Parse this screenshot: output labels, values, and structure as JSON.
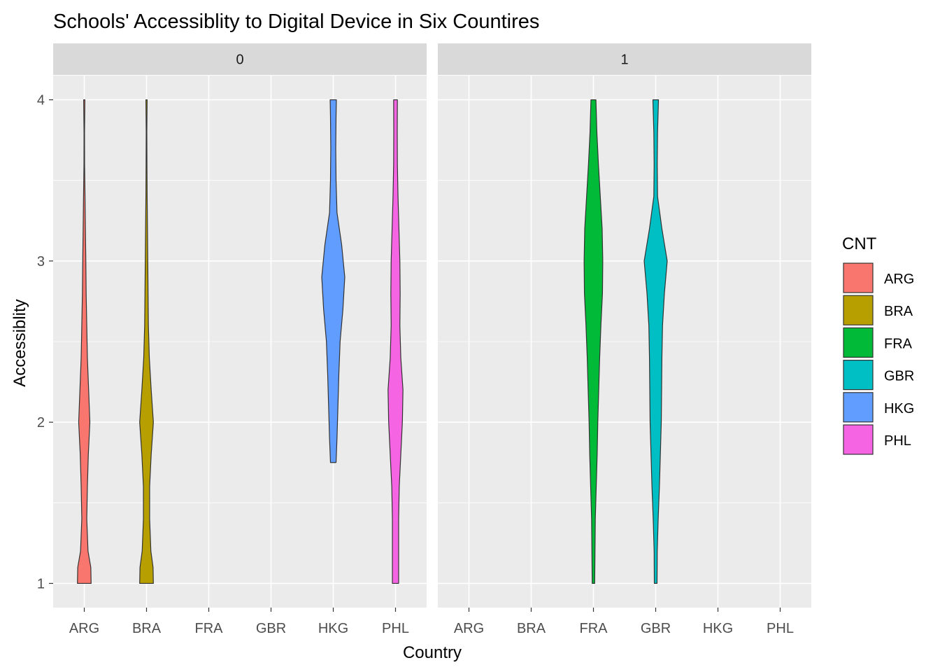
{
  "chart_data": {
    "type": "violin",
    "title": "Schools' Accessiblity to Digital Device in Six Countires",
    "xlabel": "Country",
    "ylabel": "Accessiblity",
    "x_categories": [
      "ARG",
      "BRA",
      "FRA",
      "GBR",
      "HKG",
      "PHL"
    ],
    "ylim": [
      0.85,
      4.15
    ],
    "y_ticks": [
      "1",
      "2",
      "3",
      "4"
    ],
    "y_tick_values": [
      1,
      2,
      3,
      4
    ],
    "grid": true,
    "legend_position": "right",
    "legend": {
      "title": "CNT",
      "entries": [
        {
          "label": "ARG",
          "color": "#F8766D"
        },
        {
          "label": "BRA",
          "color": "#B79F00"
        },
        {
          "label": "FRA",
          "color": "#00BA38"
        },
        {
          "label": "GBR",
          "color": "#00BFC4"
        },
        {
          "label": "HKG",
          "color": "#619CFF"
        },
        {
          "label": "PHL",
          "color": "#F564E3"
        }
      ]
    },
    "facets": [
      {
        "label": "0",
        "violins": [
          {
            "category": "ARG",
            "color": "#F8766D",
            "profile": [
              [
                1.0,
                0.11
              ],
              [
                1.1,
                0.105
              ],
              [
                1.2,
                0.06
              ],
              [
                1.4,
                0.04
              ],
              [
                1.6,
                0.05
              ],
              [
                1.8,
                0.065
              ],
              [
                2.0,
                0.09
              ],
              [
                2.2,
                0.07
              ],
              [
                2.4,
                0.05
              ],
              [
                2.6,
                0.04
              ],
              [
                2.8,
                0.03
              ],
              [
                3.0,
                0.025
              ],
              [
                3.2,
                0.018
              ],
              [
                3.4,
                0.012
              ],
              [
                3.6,
                0.005
              ],
              [
                3.8,
                0.004
              ],
              [
                4.0,
                0.01
              ]
            ]
          },
          {
            "category": "BRA",
            "color": "#B79F00",
            "profile": [
              [
                1.0,
                0.11
              ],
              [
                1.1,
                0.105
              ],
              [
                1.2,
                0.07
              ],
              [
                1.4,
                0.05
              ],
              [
                1.6,
                0.05
              ],
              [
                1.8,
                0.075
              ],
              [
                2.0,
                0.11
              ],
              [
                2.2,
                0.075
              ],
              [
                2.4,
                0.045
              ],
              [
                2.6,
                0.03
              ],
              [
                2.8,
                0.025
              ],
              [
                3.0,
                0.02
              ],
              [
                3.2,
                0.015
              ],
              [
                3.4,
                0.01
              ],
              [
                3.6,
                0.007
              ],
              [
                3.8,
                0.005
              ],
              [
                4.0,
                0.01
              ]
            ]
          },
          {
            "category": "HKG",
            "color": "#619CFF",
            "profile": [
              [
                1.75,
                0.045
              ],
              [
                1.9,
                0.06
              ],
              [
                2.1,
                0.075
              ],
              [
                2.3,
                0.09
              ],
              [
                2.5,
                0.11
              ],
              [
                2.7,
                0.155
              ],
              [
                2.9,
                0.185
              ],
              [
                3.1,
                0.135
              ],
              [
                3.3,
                0.06
              ],
              [
                3.5,
                0.045
              ],
              [
                3.7,
                0.04
              ],
              [
                3.9,
                0.045
              ],
              [
                4.0,
                0.05
              ]
            ]
          },
          {
            "category": "PHL",
            "color": "#F564E3",
            "profile": [
              [
                1.0,
                0.05
              ],
              [
                1.2,
                0.05
              ],
              [
                1.4,
                0.05
              ],
              [
                1.6,
                0.06
              ],
              [
                1.8,
                0.085
              ],
              [
                2.0,
                0.11
              ],
              [
                2.2,
                0.12
              ],
              [
                2.4,
                0.085
              ],
              [
                2.6,
                0.07
              ],
              [
                2.8,
                0.075
              ],
              [
                3.0,
                0.07
              ],
              [
                3.2,
                0.055
              ],
              [
                3.4,
                0.04
              ],
              [
                3.6,
                0.03
              ],
              [
                3.8,
                0.028
              ],
              [
                4.0,
                0.03
              ]
            ]
          }
        ]
      },
      {
        "label": "1",
        "violins": [
          {
            "category": "FRA",
            "color": "#00BA38",
            "profile": [
              [
                1.0,
                0.02
              ],
              [
                1.2,
                0.025
              ],
              [
                1.4,
                0.03
              ],
              [
                1.6,
                0.045
              ],
              [
                1.8,
                0.06
              ],
              [
                2.0,
                0.07
              ],
              [
                2.2,
                0.085
              ],
              [
                2.4,
                0.1
              ],
              [
                2.6,
                0.12
              ],
              [
                2.8,
                0.145
              ],
              [
                3.0,
                0.15
              ],
              [
                3.2,
                0.14
              ],
              [
                3.4,
                0.11
              ],
              [
                3.6,
                0.08
              ],
              [
                3.8,
                0.055
              ],
              [
                4.0,
                0.04
              ]
            ]
          },
          {
            "category": "GBR",
            "color": "#00BFC4",
            "profile": [
              [
                1.0,
                0.022
              ],
              [
                1.2,
                0.025
              ],
              [
                1.4,
                0.04
              ],
              [
                1.6,
                0.06
              ],
              [
                1.8,
                0.075
              ],
              [
                2.0,
                0.09
              ],
              [
                2.2,
                0.095
              ],
              [
                2.4,
                0.1
              ],
              [
                2.6,
                0.11
              ],
              [
                2.8,
                0.14
              ],
              [
                3.0,
                0.185
              ],
              [
                3.2,
                0.1
              ],
              [
                3.4,
                0.03
              ],
              [
                3.6,
                0.025
              ],
              [
                3.8,
                0.03
              ],
              [
                4.0,
                0.045
              ]
            ]
          }
        ]
      }
    ]
  }
}
